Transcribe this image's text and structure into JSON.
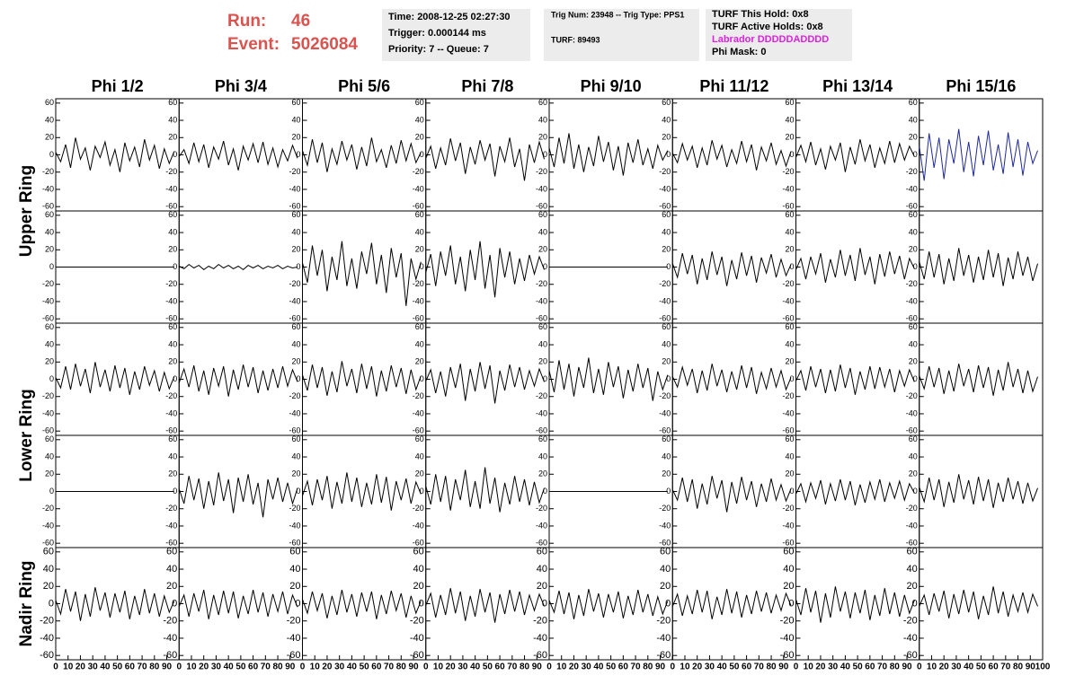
{
  "header": {
    "run_label": "Run:",
    "run": "46",
    "event_label": "Event:",
    "event": "5026084",
    "box1": [
      "Time: 2008-12-25 02:27:30",
      "Trigger: 0.000144 ms",
      "Priority: 7 -- Queue: 7"
    ],
    "box2": [
      "Trig Num: 23948 -- Trig Type: PPS1",
      "TURF: 89493"
    ],
    "box3": [
      "TURF This Hold: 0x8",
      "TURF Active Holds: 0x8",
      "Labrador DDDDDADDDD",
      "Phi Mask: 0"
    ]
  },
  "chart_data": {
    "type": "line",
    "columns": [
      "Phi 1/2",
      "Phi 3/4",
      "Phi 5/6",
      "Phi 7/8",
      "Phi 9/10",
      "Phi 11/12",
      "Phi 13/14",
      "Phi 15/16"
    ],
    "row_labels": [
      "Upper Ring",
      "Lower Ring",
      "Nadir Ring"
    ],
    "x": [
      0,
      4,
      8,
      12,
      16,
      20,
      24,
      28,
      32,
      36,
      40,
      44,
      48,
      52,
      56,
      60,
      64,
      68,
      72,
      76,
      80,
      84,
      88,
      92,
      96
    ],
    "xlim": [
      0,
      100
    ],
    "xticks": [
      0,
      10,
      20,
      30,
      40,
      50,
      60,
      70,
      80,
      90,
      100
    ],
    "ylim": [
      -65,
      65
    ],
    "yticks": [
      -60,
      -40,
      -20,
      0,
      20,
      40,
      60
    ],
    "series": [
      {
        "color": "#000000",
        "values": [
          3,
          -8,
          12,
          -15,
          20,
          -5,
          8,
          -18,
          10,
          -3,
          15,
          -12,
          6,
          -20,
          14,
          -7,
          9,
          -14,
          18,
          -6,
          11,
          -16,
          7,
          -10,
          4
        ]
      },
      {
        "color": "#000000",
        "values": [
          -2,
          6,
          -10,
          14,
          -8,
          12,
          -15,
          9,
          -5,
          16,
          -12,
          7,
          -18,
          10,
          -6,
          13,
          -9,
          15,
          -11,
          8,
          -14,
          6,
          -7,
          11,
          -4
        ]
      },
      {
        "color": "#000000",
        "values": [
          5,
          -12,
          18,
          -9,
          14,
          -20,
          7,
          -11,
          16,
          -6,
          12,
          -17,
          9,
          -13,
          20,
          -8,
          6,
          -15,
          11,
          -10,
          17,
          -7,
          13,
          -9,
          3
        ]
      },
      {
        "color": "#000000",
        "values": [
          -4,
          10,
          -16,
          8,
          -12,
          19,
          -7,
          14,
          -22,
          9,
          -11,
          17,
          -6,
          13,
          -25,
          10,
          -8,
          20,
          -14,
          7,
          -30,
          12,
          -9,
          15,
          -5
        ]
      },
      {
        "color": "#000000",
        "values": [
          8,
          -14,
          20,
          -10,
          25,
          -16,
          12,
          -20,
          9,
          -13,
          22,
          -8,
          15,
          -18,
          10,
          -24,
          14,
          -9,
          18,
          -12,
          7,
          -16,
          11,
          -6,
          5
        ]
      },
      {
        "color": "#000000",
        "values": [
          2,
          -9,
          13,
          -6,
          10,
          -15,
          8,
          -12,
          17,
          -5,
          11,
          -14,
          6,
          -10,
          16,
          -8,
          12,
          -18,
          9,
          -7,
          14,
          -11,
          5,
          -13,
          4
        ]
      },
      {
        "color": "#000000",
        "values": [
          -3,
          11,
          -8,
          15,
          -12,
          7,
          -17,
          10,
          -6,
          14,
          -20,
          9,
          -11,
          18,
          -7,
          12,
          -15,
          8,
          -10,
          16,
          -9,
          13,
          -6,
          10,
          -2
        ]
      },
      {
        "color": "#1f2a9a",
        "values": [
          10,
          -30,
          25,
          -15,
          20,
          -28,
          18,
          -10,
          30,
          -20,
          15,
          -25,
          22,
          -12,
          28,
          -18,
          12,
          -22,
          26,
          -14,
          18,
          -24,
          15,
          -10,
          5
        ]
      },
      {
        "color": "#000000",
        "values": [
          0,
          0,
          0,
          0,
          0,
          0,
          0,
          0,
          0,
          0,
          0,
          0,
          0,
          0,
          0,
          0,
          0,
          0,
          0,
          0,
          0,
          0,
          0,
          0,
          0
        ]
      },
      {
        "color": "#000000",
        "values": [
          1,
          -2,
          3,
          -1,
          2,
          -3,
          1,
          -2,
          3,
          -1,
          2,
          -2,
          1,
          -3,
          2,
          -1,
          2,
          -2,
          1,
          -1,
          2,
          -2,
          1,
          -1,
          0
        ]
      },
      {
        "color": "#000000",
        "values": [
          5,
          -18,
          25,
          -10,
          20,
          -28,
          12,
          -15,
          30,
          -22,
          10,
          -25,
          18,
          -8,
          28,
          -20,
          14,
          -30,
          22,
          -12,
          16,
          -45,
          10,
          -14,
          6
        ]
      },
      {
        "color": "#000000",
        "values": [
          -6,
          15,
          -22,
          18,
          -10,
          25,
          -20,
          12,
          -28,
          20,
          -15,
          30,
          -25,
          14,
          -35,
          22,
          -12,
          18,
          -20,
          10,
          -16,
          14,
          -8,
          12,
          -3
        ]
      },
      {
        "color": "#000000",
        "values": [
          0,
          0,
          0,
          0,
          0,
          0,
          0,
          0,
          0,
          0,
          0,
          0,
          0,
          0,
          0,
          0,
          0,
          0,
          0,
          0,
          0,
          0,
          0,
          0,
          0
        ]
      },
      {
        "color": "#000000",
        "values": [
          4,
          -12,
          16,
          -8,
          14,
          -20,
          10,
          -15,
          18,
          -9,
          12,
          -22,
          8,
          -14,
          17,
          -10,
          13,
          -18,
          11,
          -7,
          15,
          -12,
          9,
          -10,
          3
        ]
      },
      {
        "color": "#000000",
        "values": [
          -3,
          10,
          -14,
          12,
          -8,
          16,
          -18,
          9,
          -12,
          20,
          -10,
          14,
          -16,
          22,
          -9,
          12,
          -20,
          15,
          -11,
          18,
          -8,
          13,
          -14,
          10,
          -2
        ]
      },
      {
        "color": "#000000",
        "values": [
          6,
          -14,
          18,
          -12,
          15,
          -20,
          10,
          -16,
          22,
          -10,
          14,
          -18,
          12,
          -15,
          20,
          -12,
          16,
          -22,
          11,
          -14,
          18,
          -10,
          12,
          -16,
          4
        ]
      },
      {
        "color": "#000000",
        "values": [
          2,
          -10,
          15,
          -12,
          18,
          -8,
          12,
          -16,
          20,
          -9,
          11,
          -14,
          16,
          -10,
          13,
          -18,
          9,
          -12,
          15,
          -7,
          10,
          -14,
          8,
          -11,
          3
        ]
      },
      {
        "color": "#000000",
        "values": [
          -4,
          12,
          -9,
          16,
          -14,
          10,
          -18,
          13,
          -8,
          15,
          -20,
          11,
          -12,
          17,
          -9,
          14,
          -16,
          10,
          -13,
          12,
          -10,
          15,
          -8,
          11,
          -3
        ]
      },
      {
        "color": "#000000",
        "values": [
          5,
          -13,
          17,
          -10,
          14,
          -19,
          9,
          -15,
          21,
          -8,
          12,
          -16,
          18,
          -11,
          15,
          -20,
          10,
          -14,
          16,
          -9,
          13,
          -17,
          11,
          -12,
          4
        ]
      },
      {
        "color": "#000000",
        "values": [
          -2,
          11,
          -16,
          9,
          -20,
          14,
          -10,
          18,
          -25,
          12,
          -14,
          20,
          -11,
          16,
          -28,
          10,
          -13,
          17,
          -9,
          14,
          -12,
          10,
          -8,
          12,
          -3
        ]
      },
      {
        "color": "#000000",
        "values": [
          10,
          -15,
          22,
          -12,
          18,
          -20,
          14,
          -10,
          25,
          -16,
          12,
          -18,
          20,
          -9,
          15,
          -22,
          11,
          -14,
          18,
          -10,
          13,
          -25,
          9,
          -12,
          5
        ]
      },
      {
        "color": "#000000",
        "values": [
          3,
          -9,
          14,
          -7,
          12,
          -16,
          10,
          -13,
          18,
          -8,
          11,
          -15,
          9,
          -12,
          16,
          -10,
          14,
          -17,
          8,
          -11,
          13,
          -9,
          10,
          -12,
          2
        ]
      },
      {
        "color": "#000000",
        "values": [
          -2,
          10,
          -13,
          15,
          -9,
          12,
          -16,
          11,
          -14,
          17,
          -10,
          13,
          -18,
          9,
          -12,
          15,
          -11,
          14,
          -9,
          12,
          -15,
          10,
          -8,
          11,
          -3
        ]
      },
      {
        "color": "#000000",
        "values": [
          4,
          -11,
          15,
          -9,
          13,
          -17,
          10,
          -14,
          18,
          -8,
          12,
          -15,
          16,
          -10,
          14,
          -19,
          11,
          -13,
          20,
          -9,
          12,
          -16,
          10,
          -14,
          3
        ]
      },
      {
        "color": "#000000",
        "values": [
          0,
          0,
          0,
          0,
          0,
          0,
          0,
          0,
          0,
          0,
          0,
          0,
          0,
          0,
          0,
          0,
          0,
          0,
          0,
          0,
          0,
          0,
          0,
          0,
          0
        ]
      },
      {
        "color": "#000000",
        "values": [
          3,
          -14,
          18,
          -10,
          15,
          -20,
          12,
          -16,
          22,
          -11,
          14,
          -25,
          16,
          -12,
          20,
          -15,
          10,
          -30,
          14,
          -9,
          16,
          -12,
          10,
          -14,
          4
        ]
      },
      {
        "color": "#000000",
        "values": [
          -5,
          12,
          -16,
          14,
          -10,
          18,
          -20,
          11,
          -14,
          22,
          -12,
          16,
          -18,
          10,
          -15,
          20,
          -13,
          17,
          -22,
          12,
          -10,
          15,
          -14,
          11,
          -3
        ]
      },
      {
        "color": "#000000",
        "values": [
          6,
          -15,
          20,
          -12,
          18,
          -22,
          14,
          -10,
          25,
          -18,
          12,
          -20,
          28,
          -14,
          16,
          -24,
          10,
          -15,
          18,
          -12,
          14,
          -16,
          11,
          -13,
          4
        ]
      },
      {
        "color": "#000000",
        "values": [
          0,
          0,
          0,
          0,
          0,
          0,
          0,
          0,
          0,
          0,
          0,
          0,
          0,
          0,
          0,
          0,
          0,
          0,
          0,
          0,
          0,
          0,
          0,
          0,
          0
        ]
      },
      {
        "color": "#000000",
        "values": [
          2,
          -10,
          16,
          -12,
          14,
          -20,
          9,
          -15,
          18,
          -8,
          13,
          -24,
          11,
          -14,
          17,
          -10,
          12,
          -18,
          9,
          -12,
          15,
          -10,
          8,
          -11,
          3
        ]
      },
      {
        "color": "#000000",
        "values": [
          -3,
          9,
          -12,
          10,
          -8,
          13,
          -15,
          9,
          -11,
          14,
          -10,
          12,
          -16,
          8,
          -13,
          11,
          -9,
          14,
          -12,
          10,
          -8,
          12,
          -10,
          9,
          -2
        ]
      },
      {
        "color": "#000000",
        "values": [
          5,
          -12,
          16,
          -10,
          14,
          -18,
          11,
          -13,
          20,
          -9,
          13,
          -15,
          17,
          -11,
          14,
          -19,
          10,
          -12,
          16,
          -9,
          12,
          -14,
          10,
          -11,
          4
        ]
      },
      {
        "color": "#000000",
        "values": [
          4,
          -12,
          17,
          -9,
          14,
          -20,
          11,
          -15,
          19,
          -8,
          13,
          -16,
          12,
          -10,
          15,
          -18,
          9,
          -13,
          17,
          -11,
          12,
          -15,
          9,
          -10,
          3
        ]
      },
      {
        "color": "#000000",
        "values": [
          -3,
          10,
          -15,
          12,
          -9,
          16,
          -18,
          10,
          -13,
          15,
          -11,
          14,
          -17,
          9,
          -12,
          16,
          -10,
          13,
          -15,
          11,
          -9,
          14,
          -12,
          10,
          -4
        ]
      },
      {
        "color": "#000000",
        "values": [
          5,
          -11,
          14,
          -8,
          12,
          -17,
          9,
          -13,
          16,
          -10,
          11,
          -15,
          13,
          -9,
          14,
          -18,
          10,
          -12,
          15,
          -8,
          12,
          -16,
          9,
          -11,
          3
        ]
      },
      {
        "color": "#000000",
        "values": [
          -2,
          12,
          -16,
          10,
          -13,
          18,
          -11,
          14,
          -20,
          9,
          -15,
          17,
          -10,
          13,
          -22,
          11,
          -12,
          16,
          -9,
          14,
          -13,
          10,
          -8,
          11,
          -3
        ]
      },
      {
        "color": "#000000",
        "values": [
          4,
          -10,
          15,
          -12,
          13,
          -18,
          10,
          -14,
          17,
          -9,
          12,
          -16,
          11,
          -10,
          14,
          -17,
          9,
          -13,
          16,
          -10,
          11,
          -14,
          8,
          -12,
          3
        ]
      },
      {
        "color": "#000000",
        "values": [
          -3,
          11,
          -14,
          9,
          -12,
          16,
          -10,
          15,
          -18,
          8,
          -13,
          17,
          -11,
          14,
          -16,
          10,
          -12,
          15,
          -9,
          13,
          -11,
          10,
          -8,
          12,
          -2
        ]
      },
      {
        "color": "#000000",
        "values": [
          5,
          -13,
          18,
          -10,
          15,
          -22,
          12,
          -16,
          20,
          -9,
          14,
          -17,
          13,
          -11,
          16,
          -19,
          10,
          -14,
          18,
          -12,
          13,
          -15,
          10,
          -11,
          4
        ]
      },
      {
        "color": "#000000",
        "values": [
          -3,
          10,
          -13,
          12,
          -9,
          15,
          -17,
          11,
          -12,
          16,
          -10,
          14,
          -18,
          9,
          -13,
          20,
          -11,
          14,
          -15,
          10,
          -9,
          13,
          -10,
          11,
          -3
        ]
      }
    ]
  }
}
